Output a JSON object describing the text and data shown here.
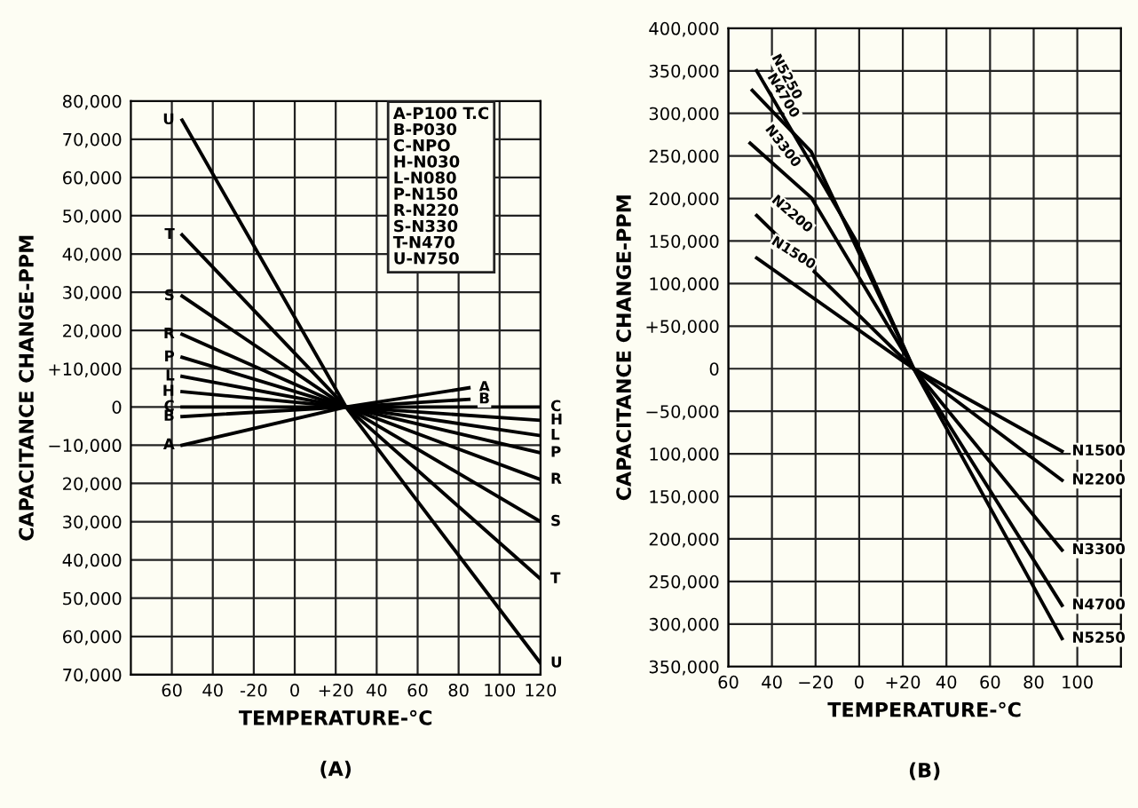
{
  "chart_data": [
    {
      "type": "line",
      "xlabel": "TEMPERATURE-°C",
      "ylabel": "CAPACITANCE CHANGE-PPM",
      "annotations": [
        "(A)",
        "A-P100 T.C",
        "B-P030",
        "C-NPO",
        "H-N030",
        "L-N080",
        "P-N150",
        "R-N220",
        "S-N330",
        "T-N470",
        "U-N750"
      ],
      "xlim": [
        -80,
        120
      ],
      "xticks": [
        {
          "value": -60,
          "label": "60"
        },
        {
          "value": -40,
          "label": "40"
        },
        -20,
        0,
        {
          "value": 20,
          "label": "+20"
        },
        40,
        60,
        80,
        100,
        120
      ],
      "ylim": [
        -70000,
        80000
      ],
      "yticks": [
        {
          "value": -70000,
          "label": "70,000"
        },
        {
          "value": -60000,
          "label": "60,000"
        },
        {
          "value": -50000,
          "label": "50,000"
        },
        {
          "value": -40000,
          "label": "40,000"
        },
        {
          "value": -30000,
          "label": "30,000"
        },
        {
          "value": -20000,
          "label": "20,000"
        },
        {
          "value": -10000,
          "label": "−10,000"
        },
        0,
        {
          "value": 10000,
          "label": "+10,000"
        },
        {
          "value": 20000,
          "label": "20,000"
        },
        {
          "value": 30000,
          "label": "30,000"
        },
        {
          "value": 40000,
          "label": "40,000"
        },
        {
          "value": 50000,
          "label": "50,000"
        },
        {
          "value": 60000,
          "label": "60,000"
        },
        {
          "value": 70000,
          "label": "70,000"
        },
        {
          "value": 80000,
          "label": "80,000"
        }
      ],
      "grid": true,
      "marker": "none",
      "line_style": "solid",
      "series": [
        {
          "name": "A",
          "color": "#000000",
          "x": [
            -55,
            25,
            85
          ],
          "values": [
            -10000,
            0,
            5000
          ]
        },
        {
          "name": "B",
          "color": "#000000",
          "x": [
            -55,
            25,
            85
          ],
          "values": [
            -2500,
            0,
            2000
          ]
        },
        {
          "name": "C",
          "color": "#000000",
          "x": [
            -55,
            25,
            120
          ],
          "values": [
            0,
            0,
            0
          ]
        },
        {
          "name": "H",
          "color": "#000000",
          "x": [
            -55,
            25,
            120
          ],
          "values": [
            4000,
            0,
            -3500
          ]
        },
        {
          "name": "L",
          "color": "#000000",
          "x": [
            -55,
            25,
            120
          ],
          "values": [
            8000,
            0,
            -7500
          ]
        },
        {
          "name": "P",
          "color": "#000000",
          "x": [
            -55,
            25,
            120
          ],
          "values": [
            13000,
            0,
            -12000
          ]
        },
        {
          "name": "R",
          "color": "#000000",
          "x": [
            -55,
            25,
            120
          ],
          "values": [
            19000,
            0,
            -19000
          ]
        },
        {
          "name": "S",
          "color": "#000000",
          "x": [
            -55,
            25,
            120
          ],
          "values": [
            29000,
            0,
            -30000
          ]
        },
        {
          "name": "T",
          "color": "#000000",
          "x": [
            -55,
            25,
            120
          ],
          "values": [
            45000,
            0,
            -45000
          ]
        },
        {
          "name": "U",
          "color": "#000000",
          "x": [
            -55,
            25,
            120
          ],
          "values": [
            75000,
            0,
            -67000
          ]
        }
      ]
    },
    {
      "type": "line",
      "xlabel": "TEMPERATURE-°C",
      "ylabel": "CAPACITANCE CHANGE-PPM",
      "annotations": [
        "(B)"
      ],
      "xlim": [
        -60,
        120
      ],
      "xticks": [
        {
          "value": -60,
          "label": "60"
        },
        {
          "value": -40,
          "label": "40"
        },
        {
          "value": -20,
          "label": "−20"
        },
        0,
        {
          "value": 20,
          "label": "+20"
        },
        40,
        60,
        80,
        100
      ],
      "ylim": [
        -350000,
        400000
      ],
      "yticks": [
        {
          "value": -350000,
          "label": "350,000"
        },
        {
          "value": -300000,
          "label": "300,000"
        },
        {
          "value": -250000,
          "label": "250,000"
        },
        {
          "value": -200000,
          "label": "200,000"
        },
        {
          "value": -150000,
          "label": "150,000"
        },
        {
          "value": -100000,
          "label": "100,000"
        },
        {
          "value": -50000,
          "label": "−50,000"
        },
        0,
        {
          "value": 50000,
          "label": "+50,000"
        },
        {
          "value": 100000,
          "label": "100,000"
        },
        {
          "value": 150000,
          "label": "150,000"
        },
        {
          "value": 200000,
          "label": "200,000"
        },
        {
          "value": 250000,
          "label": "250,000"
        },
        {
          "value": 300000,
          "label": "300,000"
        },
        {
          "value": 350000,
          "label": "350,000"
        },
        {
          "value": 400000,
          "label": "400,000"
        }
      ],
      "grid": true,
      "marker": "none",
      "line_style": "solid",
      "series": [
        {
          "name": "N5250",
          "color": "#000000",
          "x": [
            -47,
            -2,
            25,
            93
          ],
          "values": [
            350000,
            153000,
            0,
            -317000
          ]
        },
        {
          "name": "N4700",
          "color": "#000000",
          "x": [
            -49,
            -22,
            25,
            93
          ],
          "values": [
            327000,
            255000,
            0,
            -278000
          ]
        },
        {
          "name": "N3300",
          "color": "#000000",
          "x": [
            -50,
            -22,
            25,
            93
          ],
          "values": [
            265000,
            201000,
            0,
            -213000
          ]
        },
        {
          "name": "N2200",
          "color": "#000000",
          "x": [
            -47,
            25,
            93
          ],
          "values": [
            180000,
            0,
            -131000
          ]
        },
        {
          "name": "N1500",
          "color": "#000000",
          "x": [
            -47,
            25,
            93
          ],
          "values": [
            130000,
            0,
            -97000
          ]
        }
      ]
    }
  ]
}
